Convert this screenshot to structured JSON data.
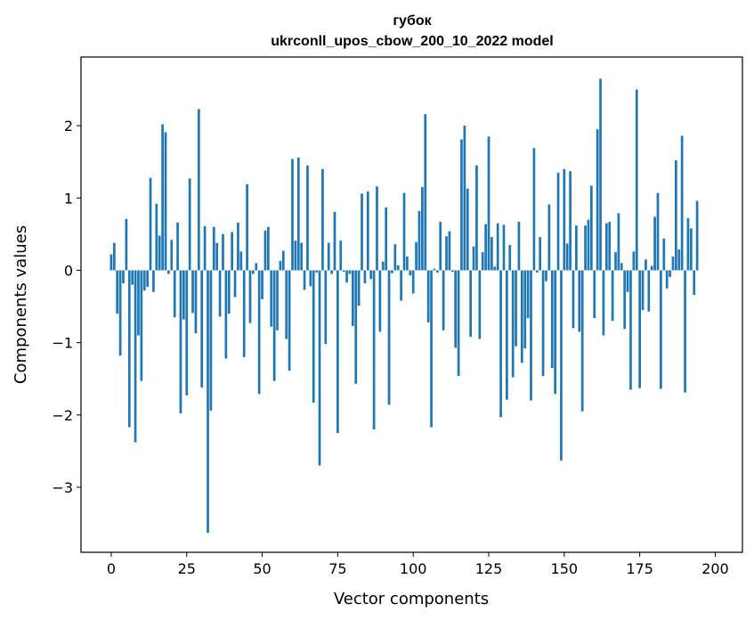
{
  "chart_data": {
    "type": "bar",
    "title_line1": "губок",
    "title_line2": "ukrconll_upos_cbow_200_10_2022 model",
    "xlabel": "Vector components",
    "ylabel": "Components values",
    "xlim": [
      -10,
      209
    ],
    "ylim": [
      -3.9,
      2.95
    ],
    "xticks": [
      0,
      25,
      50,
      75,
      100,
      125,
      150,
      175,
      200
    ],
    "xtick_labels": [
      "0",
      "25",
      "50",
      "75",
      "100",
      "125",
      "150",
      "175",
      "200"
    ],
    "yticks": [
      -3,
      -2,
      -1,
      0,
      1,
      2
    ],
    "ytick_labels": [
      "−3",
      "−2",
      "−1",
      "0",
      "1",
      "2"
    ],
    "bar_color": "#1f77b4",
    "values": [
      0.22,
      0.38,
      -0.6,
      -1.18,
      -0.18,
      0.71,
      -2.17,
      -0.2,
      -2.38,
      -0.9,
      -1.53,
      -0.28,
      -0.23,
      1.28,
      -0.3,
      0.92,
      0.48,
      2.02,
      1.91,
      -0.05,
      0.42,
      -0.65,
      0.66,
      -1.98,
      -0.68,
      -1.73,
      1.27,
      -0.59,
      -0.87,
      2.23,
      -1.62,
      0.61,
      -3.63,
      -1.94,
      0.6,
      0.38,
      -0.64,
      0.5,
      -1.22,
      -0.6,
      0.53,
      -0.37,
      0.66,
      0.26,
      -1.2,
      1.19,
      -0.73,
      -0.05,
      0.1,
      -1.71,
      -0.4,
      0.55,
      0.6,
      -0.78,
      -1.53,
      -0.83,
      0.13,
      0.27,
      -0.95,
      -1.39,
      1.54,
      0.41,
      1.56,
      0.38,
      -0.27,
      1.45,
      -0.22,
      -1.83,
      -0.03,
      -2.7,
      1.4,
      -1.02,
      0.38,
      -0.05,
      0.81,
      -2.25,
      0.41,
      -0.02,
      -0.17,
      -0.05,
      -0.77,
      -1.57,
      -0.49,
      1.06,
      -0.18,
      1.09,
      -0.12,
      -2.2,
      1.16,
      -0.85,
      0.12,
      0.87,
      -1.86,
      -0.04,
      0.36,
      0.07,
      -0.42,
      1.07,
      0.19,
      -0.07,
      -0.32,
      0.39,
      0.82,
      1.15,
      2.16,
      -0.72,
      -2.17,
      0.02,
      -0.03,
      0.67,
      -0.83,
      0.47,
      0.54,
      -0.02,
      -1.07,
      -1.46,
      1.81,
      2.0,
      1.13,
      -0.92,
      0.33,
      1.45,
      -0.95,
      0.25,
      0.64,
      1.85,
      0.46,
      0.05,
      0.65,
      -2.03,
      0.63,
      -1.79,
      0.35,
      -1.48,
      -1.05,
      0.67,
      -1.28,
      -1.08,
      -0.66,
      -1.8,
      1.69,
      -0.03,
      0.46,
      -1.46,
      -0.15,
      0.91,
      -1.35,
      -1.71,
      1.35,
      -2.63,
      1.4,
      0.37,
      1.37,
      -0.8,
      0.62,
      -0.85,
      -1.95,
      0.62,
      0.7,
      1.17,
      -0.66,
      1.95,
      2.65,
      -0.9,
      0.65,
      0.67,
      -0.7,
      0.25,
      0.79,
      0.1,
      -0.81,
      -0.3,
      -1.65,
      0.26,
      2.5,
      -1.63,
      -0.55,
      0.15,
      -0.57,
      0.06,
      0.74,
      1.07,
      -1.64,
      0.44,
      -0.25,
      -0.09,
      0.19,
      1.52,
      0.29,
      1.86,
      -1.69,
      0.72,
      0.58,
      -0.34,
      0.96
    ]
  }
}
